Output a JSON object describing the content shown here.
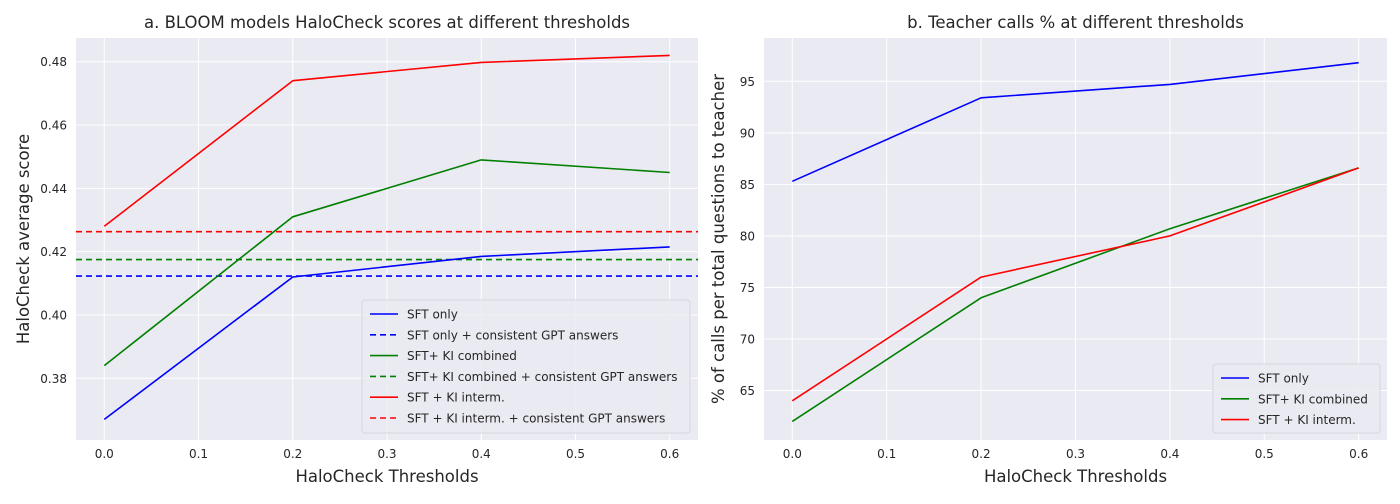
{
  "chart_data": [
    {
      "type": "line",
      "title": "a. BLOOM models HaloCheck scores at different thresholds",
      "xlabel": "HaloCheck Thresholds",
      "ylabel": "HaloCheck average score",
      "x": [
        0.0,
        0.2,
        0.4,
        0.6
      ],
      "xticks": [
        "0.0",
        "0.1",
        "0.2",
        "0.3",
        "0.4",
        "0.5",
        "0.6"
      ],
      "yticks": [
        "0.38",
        "0.40",
        "0.42",
        "0.44",
        "0.46",
        "0.48"
      ],
      "xlim": [
        -0.03,
        0.63
      ],
      "ylim": [
        0.3605,
        0.4875
      ],
      "grid": true,
      "legend_position": "lower-right",
      "series": [
        {
          "name": "SFT only",
          "color": "#0000ff",
          "style": "solid",
          "values": [
            0.367,
            0.412,
            0.4185,
            0.4215
          ]
        },
        {
          "name": "SFT only + consistent GPT answers",
          "color": "#0000ff",
          "style": "dashed",
          "constant": 0.4123
        },
        {
          "name": "SFT+ KI combined",
          "color": "#008000",
          "style": "solid",
          "values": [
            0.384,
            0.431,
            0.449,
            0.445
          ]
        },
        {
          "name": "SFT+ KI combined + consistent GPT answers",
          "color": "#008000",
          "style": "dashed",
          "constant": 0.4175
        },
        {
          "name": "SFT + KI interm.",
          "color": "#ff0000",
          "style": "solid",
          "values": [
            0.428,
            0.474,
            0.4798,
            0.482
          ]
        },
        {
          "name": "SFT + KI interm. + consistent GPT answers",
          "color": "#ff0000",
          "style": "dashed",
          "constant": 0.4263
        }
      ]
    },
    {
      "type": "line",
      "title": "b. Teacher calls % at different thresholds",
      "xlabel": "HaloCheck Thresholds",
      "ylabel": "% of calls per total questions to teacher",
      "x": [
        0.0,
        0.2,
        0.4,
        0.6
      ],
      "xticks": [
        "0.0",
        "0.1",
        "0.2",
        "0.3",
        "0.4",
        "0.5",
        "0.6"
      ],
      "yticks": [
        "65",
        "70",
        "75",
        "80",
        "85",
        "90",
        "95"
      ],
      "xlim": [
        -0.03,
        0.63
      ],
      "ylim": [
        60.2,
        99.2
      ],
      "grid": true,
      "legend_position": "lower-right",
      "series": [
        {
          "name": "SFT only",
          "color": "#0000ff",
          "style": "solid",
          "values": [
            85.3,
            93.4,
            94.7,
            96.8
          ]
        },
        {
          "name": "SFT+ KI combined",
          "color": "#008000",
          "style": "solid",
          "values": [
            62.0,
            74.0,
            80.7,
            86.6
          ]
        },
        {
          "name": "SFT + KI interm.",
          "color": "#ff0000",
          "style": "solid",
          "values": [
            64.0,
            76.0,
            80.0,
            86.6
          ]
        }
      ]
    }
  ]
}
